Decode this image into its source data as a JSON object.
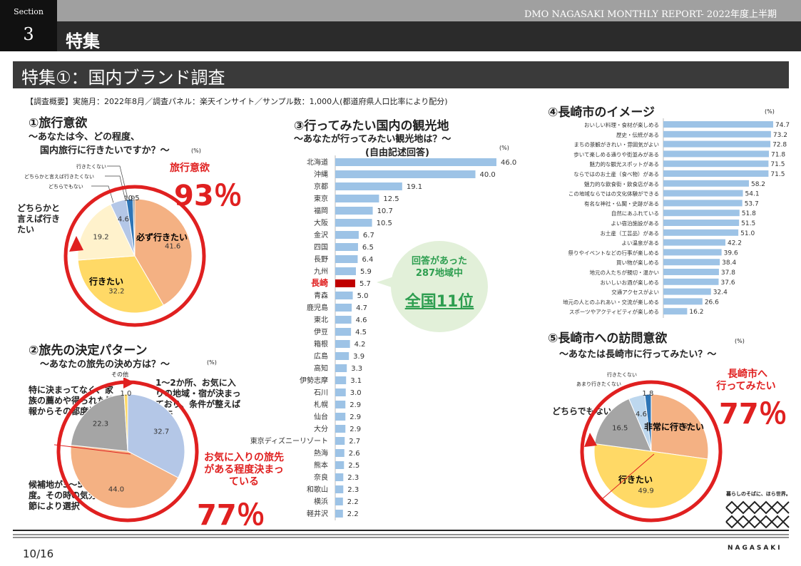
{
  "header": {
    "section_word": "Section",
    "section_number": "3",
    "report_title": "DMO NAGASAKI MONTHLY REPORT- 2022年度上半期",
    "feature_label": "特集",
    "page_title": "特集①：国内ブランド調査",
    "survey_note": "【調査概要】実施月：2022年8月／調査パネル：楽天インサイト／サンプル数：1,000人(都道府県人口比率により配分)"
  },
  "colors": {
    "red": "#e02020",
    "bar": "#9dc3e6",
    "highlight_bar": "#c00000",
    "peach": "#f4b183",
    "yellow": "#ffd966",
    "cream": "#fff2cc",
    "gray": "#a5a5a5",
    "blue": "#b4c7e7",
    "lightblue": "#bdd7ee",
    "darkblue": "#2e75b6"
  },
  "sec1": {
    "title": "①旅行意欲",
    "subtitle1": "～あなたは今、どの程度、",
    "subtitle2": "国内旅行に行きたいですか？～",
    "unit": "(%)",
    "big_label": "旅行意欲",
    "big_value": "93％",
    "outer_label": "どちらかと言えば行きたい",
    "labels": {
      "not_want": "行きたくない",
      "rather_not": "どちらかと言えば行きたくない",
      "neither": "どちらでもない",
      "must": "必ず行きたい",
      "want": "行きたい"
    }
  },
  "sec2": {
    "title": "②旅先の決定パターン",
    "subtitle": "～あなたの旅先の決め方は？～",
    "unit": "(%)",
    "other_label": "その他",
    "note_decided": "1～2か所、お気に入りの地域・宿が決まっており、条件が整えば実行",
    "note_undecided": "特に決まってなく、家族の薦めや得られた情報からその都度検討",
    "note_candidates": "候補地が3～5か所程度。その時の気分や季節により選択",
    "red_label": "お気に入りの旅先がある程度決まっている",
    "big_value": "77％"
  },
  "sec3": {
    "title": "③行ってみたい国内の観光地",
    "subtitle": "～あなたが行ってみたい観光地は？～",
    "subtitle2": "(自由記述回答)",
    "unit": "(%)",
    "callout_line1": "回答があった",
    "callout_line2": "287地域中",
    "callout_rank": "全国11位",
    "highlight": "長崎"
  },
  "sec4": {
    "title": "④長崎市のイメージ",
    "unit": "(%)"
  },
  "sec5": {
    "title": "⑤長崎市への訪問意欲",
    "subtitle": "～あなたは長崎市に行ってみたい？～",
    "unit": "(%)",
    "red_label1": "長崎市へ",
    "red_label2": "行ってみたい",
    "big_value": "77％",
    "labels": {
      "not_want": "行きたくない",
      "rather_not": "あまり行きたくない",
      "neither": "どちらでもない",
      "very": "非常に行きたい",
      "want": "行きたい"
    }
  },
  "logo": {
    "tagline": "暮らしのそばに、ほら世界。",
    "wordmark": "NAGASAKI"
  },
  "footer": {
    "page_number": "10/16"
  },
  "chart_data": [
    {
      "type": "pie",
      "title": "①旅行意欲",
      "categories": [
        "必ず行きたい",
        "行きたい",
        "どちらかと言えば行きたい",
        "どちらでもない",
        "どちらかと言えば行きたくない",
        "行きたくない"
      ],
      "values": [
        41.6,
        32.2,
        19.2,
        4.6,
        1.9,
        0.5
      ]
    },
    {
      "type": "pie",
      "title": "②旅先の決定パターン",
      "categories": [
        "1～2か所、お気に入りの地域・宿が決まっており、条件が整えば実行",
        "候補地が3～5か所程度。その時の気分や季節により選択",
        "特に決まってなく、家族の薦めや得られた情報からその都度検討",
        "その他"
      ],
      "values": [
        32.7,
        44.0,
        22.3,
        1.0
      ]
    },
    {
      "type": "bar",
      "title": "③行ってみたい国内の観光地",
      "categories": [
        "北海道",
        "沖縄",
        "京都",
        "東京",
        "福岡",
        "大阪",
        "金沢",
        "四国",
        "長野",
        "九州",
        "長崎",
        "青森",
        "鹿児島",
        "東北",
        "伊豆",
        "箱根",
        "広島",
        "高知",
        "伊勢志摩",
        "石川",
        "札幌",
        "仙台",
        "大分",
        "東京ディズニーリゾート",
        "熱海",
        "熊本",
        "奈良",
        "和歌山",
        "横浜",
        "軽井沢"
      ],
      "values": [
        46.0,
        40.0,
        19.1,
        12.5,
        10.7,
        10.5,
        6.7,
        6.5,
        6.4,
        5.9,
        5.7,
        5.0,
        4.7,
        4.6,
        4.5,
        4.2,
        3.9,
        3.3,
        3.1,
        3.0,
        2.9,
        2.9,
        2.9,
        2.7,
        2.6,
        2.5,
        2.3,
        2.3,
        2.2,
        2.2
      ]
    },
    {
      "type": "bar",
      "title": "④長崎市のイメージ",
      "categories": [
        "おいしい料理・食材が楽しめる",
        "歴史・伝統がある",
        "まちの景観がきれい・雰囲気がよい",
        "歩いて楽しめる通りや街並みがある",
        "魅力的な観光スポットがある",
        "ならではのお土産（食べ物）がある",
        "魅力的な飲食街・飲食店がある",
        "この地域ならではの文化体験ができる",
        "有名な神社・仏閣・史跡がある",
        "自然にあふれている",
        "よい宿泊施設がある",
        "お土産（工芸品）がある",
        "よい温泉がある",
        "祭りやイベントなどの行事が楽しめる",
        "買い物が楽しめる",
        "地元の人たちが親切・温かい",
        "おいしいお酒が楽しめる",
        "交通アクセスがよい",
        "地元の人とのふれあい・交流が楽しめる",
        "スポーツやアクティビティが楽しめる"
      ],
      "values": [
        74.7,
        73.2,
        72.8,
        71.8,
        71.5,
        71.5,
        58.2,
        54.1,
        53.7,
        51.8,
        51.5,
        51.0,
        42.2,
        39.6,
        38.4,
        37.8,
        37.6,
        32.4,
        26.6,
        16.2
      ]
    },
    {
      "type": "pie",
      "title": "⑤長崎市への訪問意欲",
      "categories": [
        "非常に行きたい",
        "行きたい",
        "どちらでもない",
        "あまり行きたくない",
        "行きたくない"
      ],
      "values": [
        27.2,
        49.9,
        16.5,
        4.6,
        1.8
      ]
    }
  ]
}
